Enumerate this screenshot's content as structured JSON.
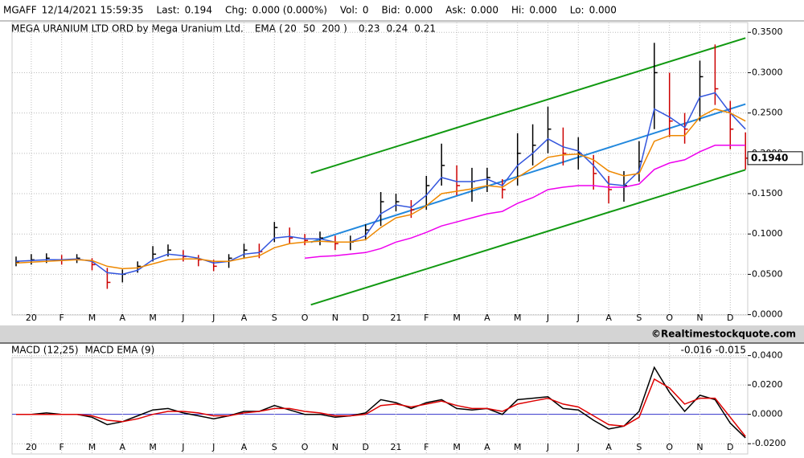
{
  "header": {
    "items": [
      {
        "label": "MGAFF",
        "value": "12/14/2021 15:59:35"
      },
      {
        "label": "Last:",
        "value": "0.194"
      },
      {
        "label": "Chg:",
        "value": "0.000 (0.000%)",
        "color": "#009900"
      },
      {
        "label": "Vol:",
        "value": "0"
      },
      {
        "label": "Bid:",
        "value": "0.000"
      },
      {
        "label": "Ask:",
        "value": "0.000"
      },
      {
        "label": "Hi:",
        "value": "0.000"
      },
      {
        "label": "Lo:",
        "value": "0.000"
      }
    ]
  },
  "source": "©Realtimestockquote.com",
  "chart_data": [
    {
      "type": "ohlc",
      "title": "MEGA URANIUM LTD ORD by Mega Uranium Ltd.",
      "ema_label": "EMA",
      "categories": [
        null,
        "20",
        null,
        "F",
        null,
        "M",
        null,
        "A",
        null,
        "M",
        null,
        "J",
        null,
        "J",
        null,
        "A",
        null,
        "S",
        null,
        "O",
        null,
        "N",
        null,
        "D",
        null,
        "21",
        null,
        "F",
        null,
        "M",
        null,
        "A",
        null,
        "M",
        null,
        "J",
        null,
        "J",
        null,
        "A",
        null,
        "S",
        null,
        "O",
        null,
        "N",
        null,
        "D",
        null
      ],
      "high": [
        0.072,
        0.075,
        0.076,
        0.074,
        0.075,
        0.07,
        0.058,
        0.056,
        0.066,
        0.085,
        0.087,
        0.08,
        0.074,
        0.068,
        0.075,
        0.088,
        0.088,
        0.115,
        0.108,
        0.1,
        0.103,
        0.098,
        0.098,
        0.112,
        0.152,
        0.15,
        0.142,
        0.172,
        0.212,
        0.185,
        0.182,
        0.182,
        0.168,
        0.225,
        0.236,
        0.258,
        0.232,
        0.22,
        0.198,
        0.172,
        0.178,
        0.215,
        0.337,
        0.3,
        0.25,
        0.315,
        0.335,
        0.265,
        0.226
      ],
      "low": [
        0.06,
        0.062,
        0.064,
        0.062,
        0.064,
        0.055,
        0.032,
        0.04,
        0.052,
        0.066,
        0.072,
        0.066,
        0.06,
        0.054,
        0.058,
        0.07,
        0.07,
        0.09,
        0.088,
        0.086,
        0.086,
        0.08,
        0.08,
        0.092,
        0.11,
        0.128,
        0.12,
        0.13,
        0.16,
        0.148,
        0.14,
        0.152,
        0.144,
        0.16,
        0.185,
        0.2,
        0.185,
        0.18,
        0.155,
        0.138,
        0.14,
        0.165,
        0.23,
        0.22,
        0.212,
        0.24,
        0.26,
        0.205,
        0.18
      ],
      "close": [
        0.065,
        0.068,
        0.07,
        0.068,
        0.07,
        0.062,
        0.04,
        0.05,
        0.06,
        0.075,
        0.08,
        0.072,
        0.068,
        0.06,
        0.07,
        0.08,
        0.078,
        0.108,
        0.095,
        0.092,
        0.095,
        0.088,
        0.09,
        0.105,
        0.14,
        0.14,
        0.13,
        0.16,
        0.185,
        0.16,
        0.165,
        0.17,
        0.155,
        0.2,
        0.21,
        0.23,
        0.2,
        0.2,
        0.175,
        0.155,
        0.16,
        0.19,
        0.3,
        0.24,
        0.23,
        0.295,
        0.28,
        0.23,
        0.194
      ],
      "series": [
        {
          "name": "20",
          "color": "#3355dd",
          "last_value": 0.23,
          "values": [
            0.066,
            0.067,
            0.068,
            0.068,
            0.069,
            0.066,
            0.052,
            0.05,
            0.055,
            0.068,
            0.075,
            0.073,
            0.07,
            0.064,
            0.066,
            0.075,
            0.077,
            0.095,
            0.097,
            0.094,
            0.094,
            0.09,
            0.09,
            0.098,
            0.125,
            0.136,
            0.133,
            0.148,
            0.17,
            0.165,
            0.165,
            0.168,
            0.16,
            0.185,
            0.2,
            0.218,
            0.208,
            0.203,
            0.185,
            0.162,
            0.16,
            0.178,
            0.255,
            0.245,
            0.232,
            0.27,
            0.275,
            0.25,
            0.23
          ]
        },
        {
          "name": "50",
          "color": "#ee8800",
          "last_value": 0.24,
          "values": [
            0.064,
            0.065,
            0.066,
            0.067,
            0.068,
            0.067,
            0.06,
            0.057,
            0.058,
            0.063,
            0.068,
            0.069,
            0.069,
            0.066,
            0.066,
            0.07,
            0.073,
            0.083,
            0.088,
            0.09,
            0.091,
            0.09,
            0.09,
            0.093,
            0.108,
            0.12,
            0.124,
            0.135,
            0.15,
            0.153,
            0.156,
            0.16,
            0.158,
            0.17,
            0.182,
            0.195,
            0.198,
            0.199,
            0.192,
            0.178,
            0.172,
            0.175,
            0.215,
            0.222,
            0.222,
            0.245,
            0.255,
            0.25,
            0.24
          ]
        },
        {
          "name": "200",
          "color": "#ee00ee",
          "last_value": 0.21,
          "values": [
            null,
            null,
            null,
            null,
            null,
            null,
            null,
            null,
            null,
            null,
            null,
            null,
            null,
            null,
            null,
            null,
            null,
            null,
            null,
            0.07,
            0.072,
            0.073,
            0.075,
            0.077,
            0.082,
            0.09,
            0.095,
            0.102,
            0.11,
            0.115,
            0.12,
            0.125,
            0.128,
            0.138,
            0.145,
            0.155,
            0.158,
            0.16,
            0.16,
            0.158,
            0.158,
            0.162,
            0.18,
            0.188,
            0.192,
            0.202,
            0.21,
            0.21,
            0.21
          ]
        }
      ],
      "trendlines": [
        {
          "color": "#119911",
          "x": [
            19.4,
            48
          ],
          "values": [
            0.1755,
            0.343
          ]
        },
        {
          "color": "#2288dd",
          "x": [
            19.4,
            48
          ],
          "values": [
            0.0898,
            0.261
          ]
        },
        {
          "color": "#119911",
          "x": [
            19.4,
            48
          ],
          "values": [
            0.0122,
            0.1796
          ]
        }
      ],
      "price_label": {
        "value": 0.194,
        "label": "0.1940"
      },
      "ylim": [
        -0.0004,
        0.3622
      ],
      "yticks": [
        {
          "value": 0,
          "label": "0.0000"
        },
        {
          "value": 0.05,
          "label": "0.0500"
        },
        {
          "value": 0.1,
          "label": "0.1000"
        },
        {
          "value": 0.15,
          "label": "0.1500"
        },
        {
          "value": 0.2,
          "label": "0.2000"
        },
        {
          "value": 0.25,
          "label": "0.2500"
        },
        {
          "value": 0.3,
          "label": "0.3000"
        },
        {
          "value": 0.35,
          "label": "0.3500"
        }
      ],
      "grid": true
    },
    {
      "type": "line",
      "categories": [
        null,
        "20",
        null,
        "F",
        null,
        "M",
        null,
        "A",
        null,
        "M",
        null,
        "J",
        null,
        "J",
        null,
        "A",
        null,
        "S",
        null,
        "O",
        null,
        "N",
        null,
        "D",
        null,
        "21",
        null,
        "F",
        null,
        "M",
        null,
        "A",
        null,
        "M",
        null,
        "J",
        null,
        "J",
        null,
        "A",
        null,
        "S",
        null,
        "O",
        null,
        "N",
        null,
        "D",
        null
      ],
      "series": [
        {
          "name": "MACD (12,25)",
          "color": "#000000",
          "last_value": -0.016,
          "values": [
            0.0,
            0.0,
            0.001,
            0.0,
            0.0,
            -0.002,
            -0.007,
            -0.005,
            -0.001,
            0.003,
            0.004,
            0.001,
            -0.001,
            -0.003,
            -0.001,
            0.002,
            0.002,
            0.006,
            0.003,
            0.0,
            0.0,
            -0.002,
            -0.001,
            0.001,
            0.01,
            0.008,
            0.004,
            0.008,
            0.01,
            0.004,
            0.003,
            0.004,
            0.0,
            0.01,
            0.011,
            0.012,
            0.004,
            0.003,
            -0.004,
            -0.01,
            -0.008,
            0.002,
            0.032,
            0.015,
            0.002,
            0.013,
            0.01,
            -0.006,
            -0.016
          ]
        },
        {
          "name": "MACD EMA (9)",
          "color": "#dd0000",
          "last_value": -0.015,
          "values": [
            0.0,
            0.0,
            0.0,
            0.0,
            0.0,
            -0.001,
            -0.004,
            -0.005,
            -0.003,
            0.0,
            0.002,
            0.002,
            0.001,
            -0.001,
            -0.001,
            0.001,
            0.002,
            0.004,
            0.004,
            0.002,
            0.001,
            -0.001,
            -0.001,
            0.0,
            0.006,
            0.007,
            0.005,
            0.007,
            0.009,
            0.006,
            0.004,
            0.004,
            0.002,
            0.007,
            0.009,
            0.011,
            0.007,
            0.005,
            -0.001,
            -0.007,
            -0.008,
            -0.002,
            0.024,
            0.018,
            0.007,
            0.011,
            0.011,
            -0.002,
            -0.015
          ]
        }
      ],
      "ylim": [
        -0.027,
        0.048
      ],
      "yticks": [
        {
          "value": 0.04,
          "label": "0.0400"
        },
        {
          "value": 0.02,
          "label": "0.0200"
        },
        {
          "value": 0,
          "label": "0.0000"
        },
        {
          "value": -0.02,
          "label": "-0.0200"
        }
      ],
      "zero_line_color": "#3333cc",
      "grid": true
    }
  ]
}
